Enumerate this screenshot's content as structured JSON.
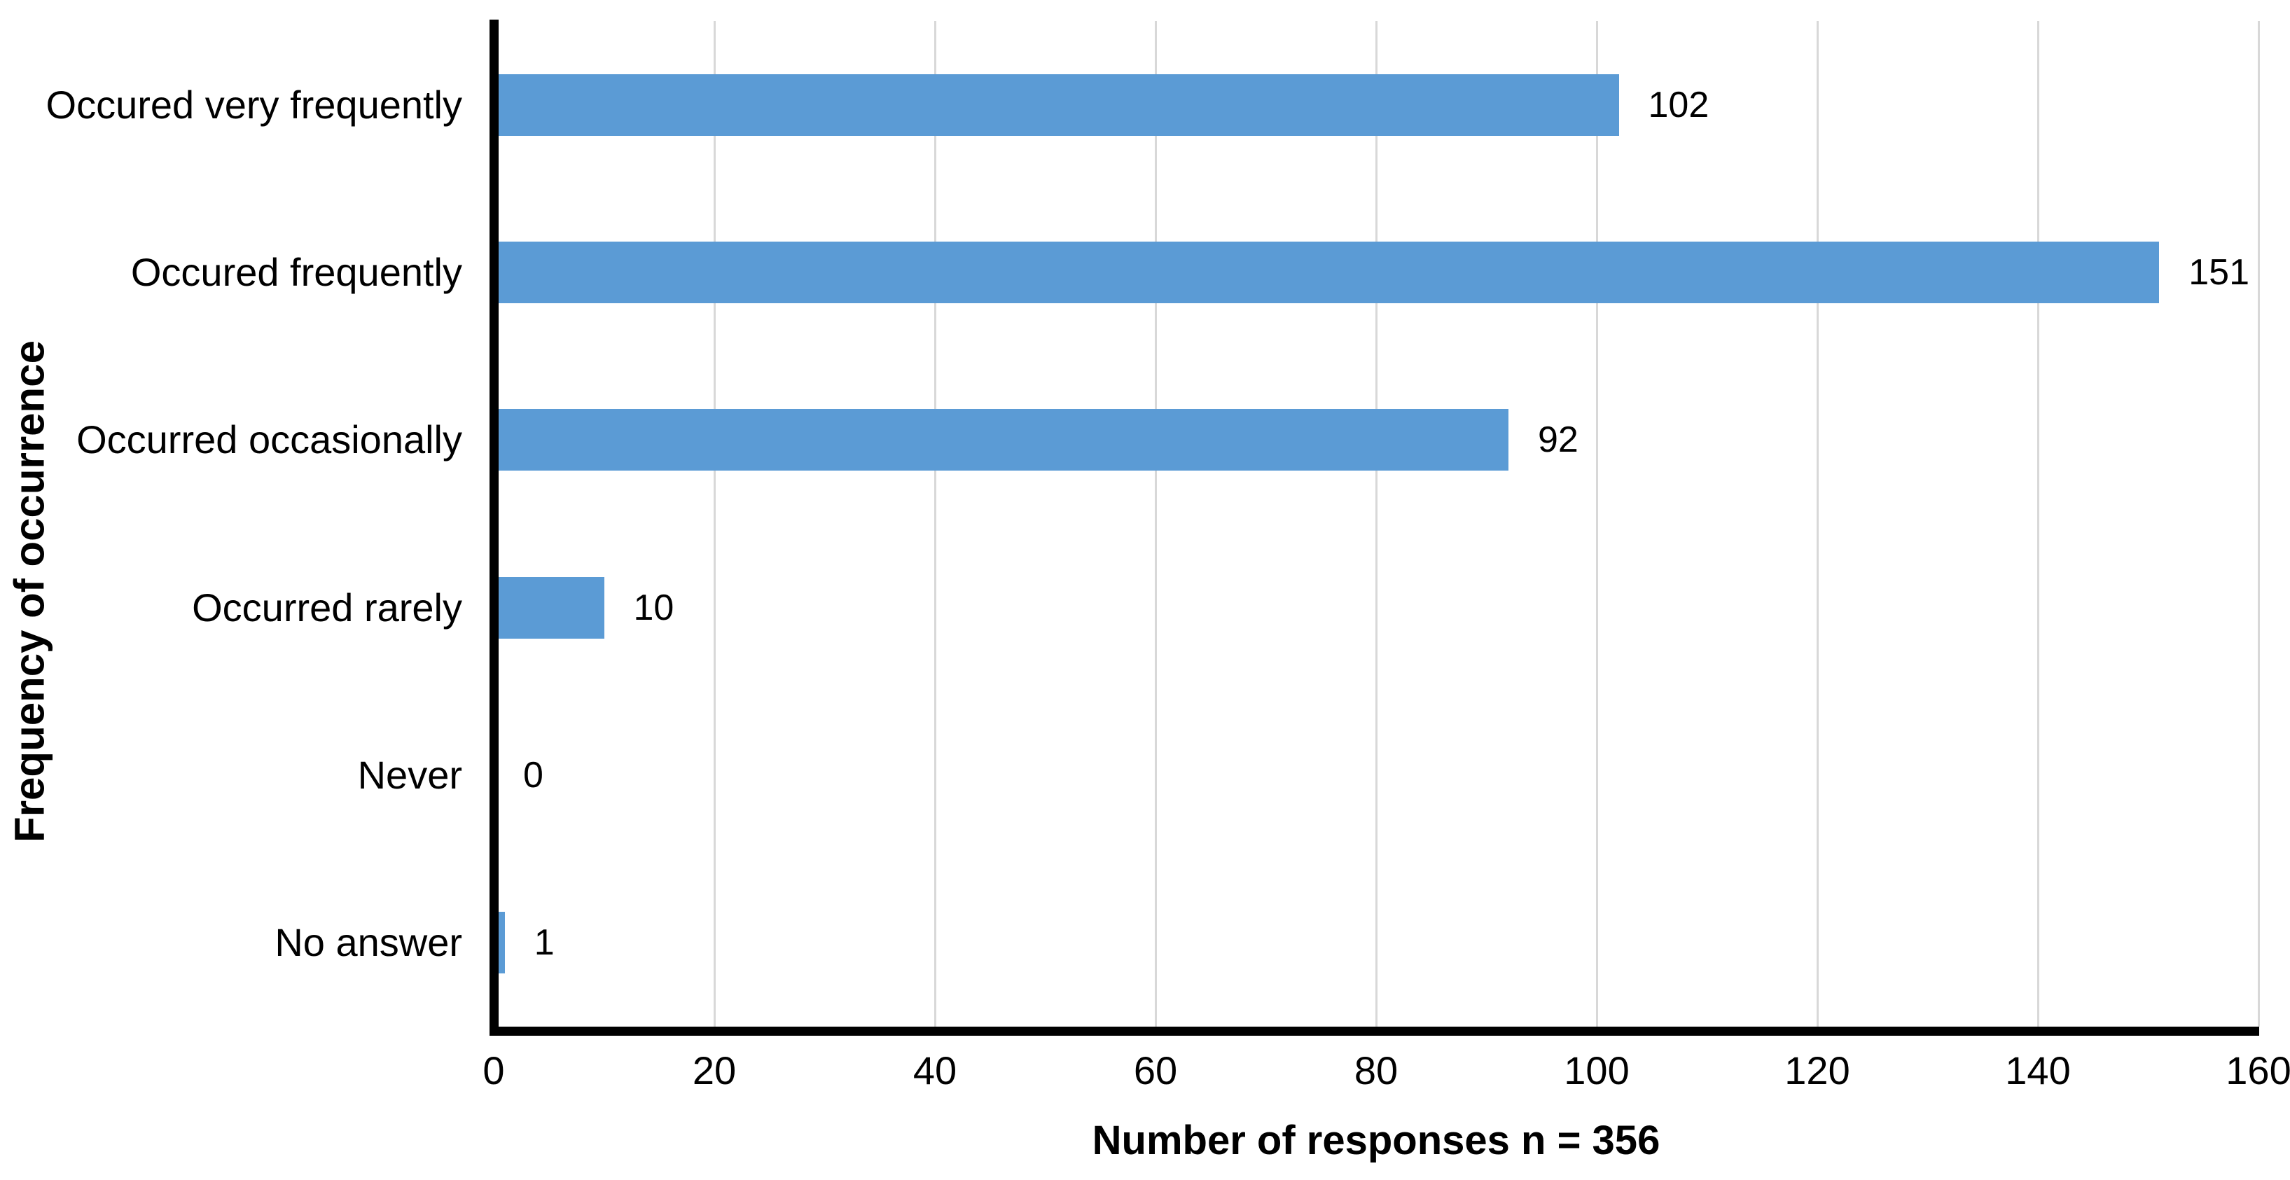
{
  "chart_data": {
    "type": "bar",
    "orientation": "horizontal",
    "title": "",
    "categories": [
      "Occured very frequently",
      "Occured frequently",
      "Occurred occasionally",
      "Occurred rarely",
      "Never",
      "No answer"
    ],
    "values": [
      102,
      151,
      92,
      10,
      0,
      1
    ],
    "value_labels": [
      "102",
      "151",
      "92",
      "10",
      "0",
      "1"
    ],
    "xlabel": "Number of responses n = 356",
    "ylabel": "Frequency of occurrence",
    "xlim": [
      0,
      160
    ],
    "xticks": [
      0,
      20,
      40,
      60,
      80,
      100,
      120,
      140,
      160
    ],
    "grid": "vertical-major-only",
    "legend_position": "none",
    "bar_color": "#5B9BD5",
    "axis_color": "#000000",
    "gridline_color": "#D8D8D8",
    "text_color": "#000000"
  }
}
